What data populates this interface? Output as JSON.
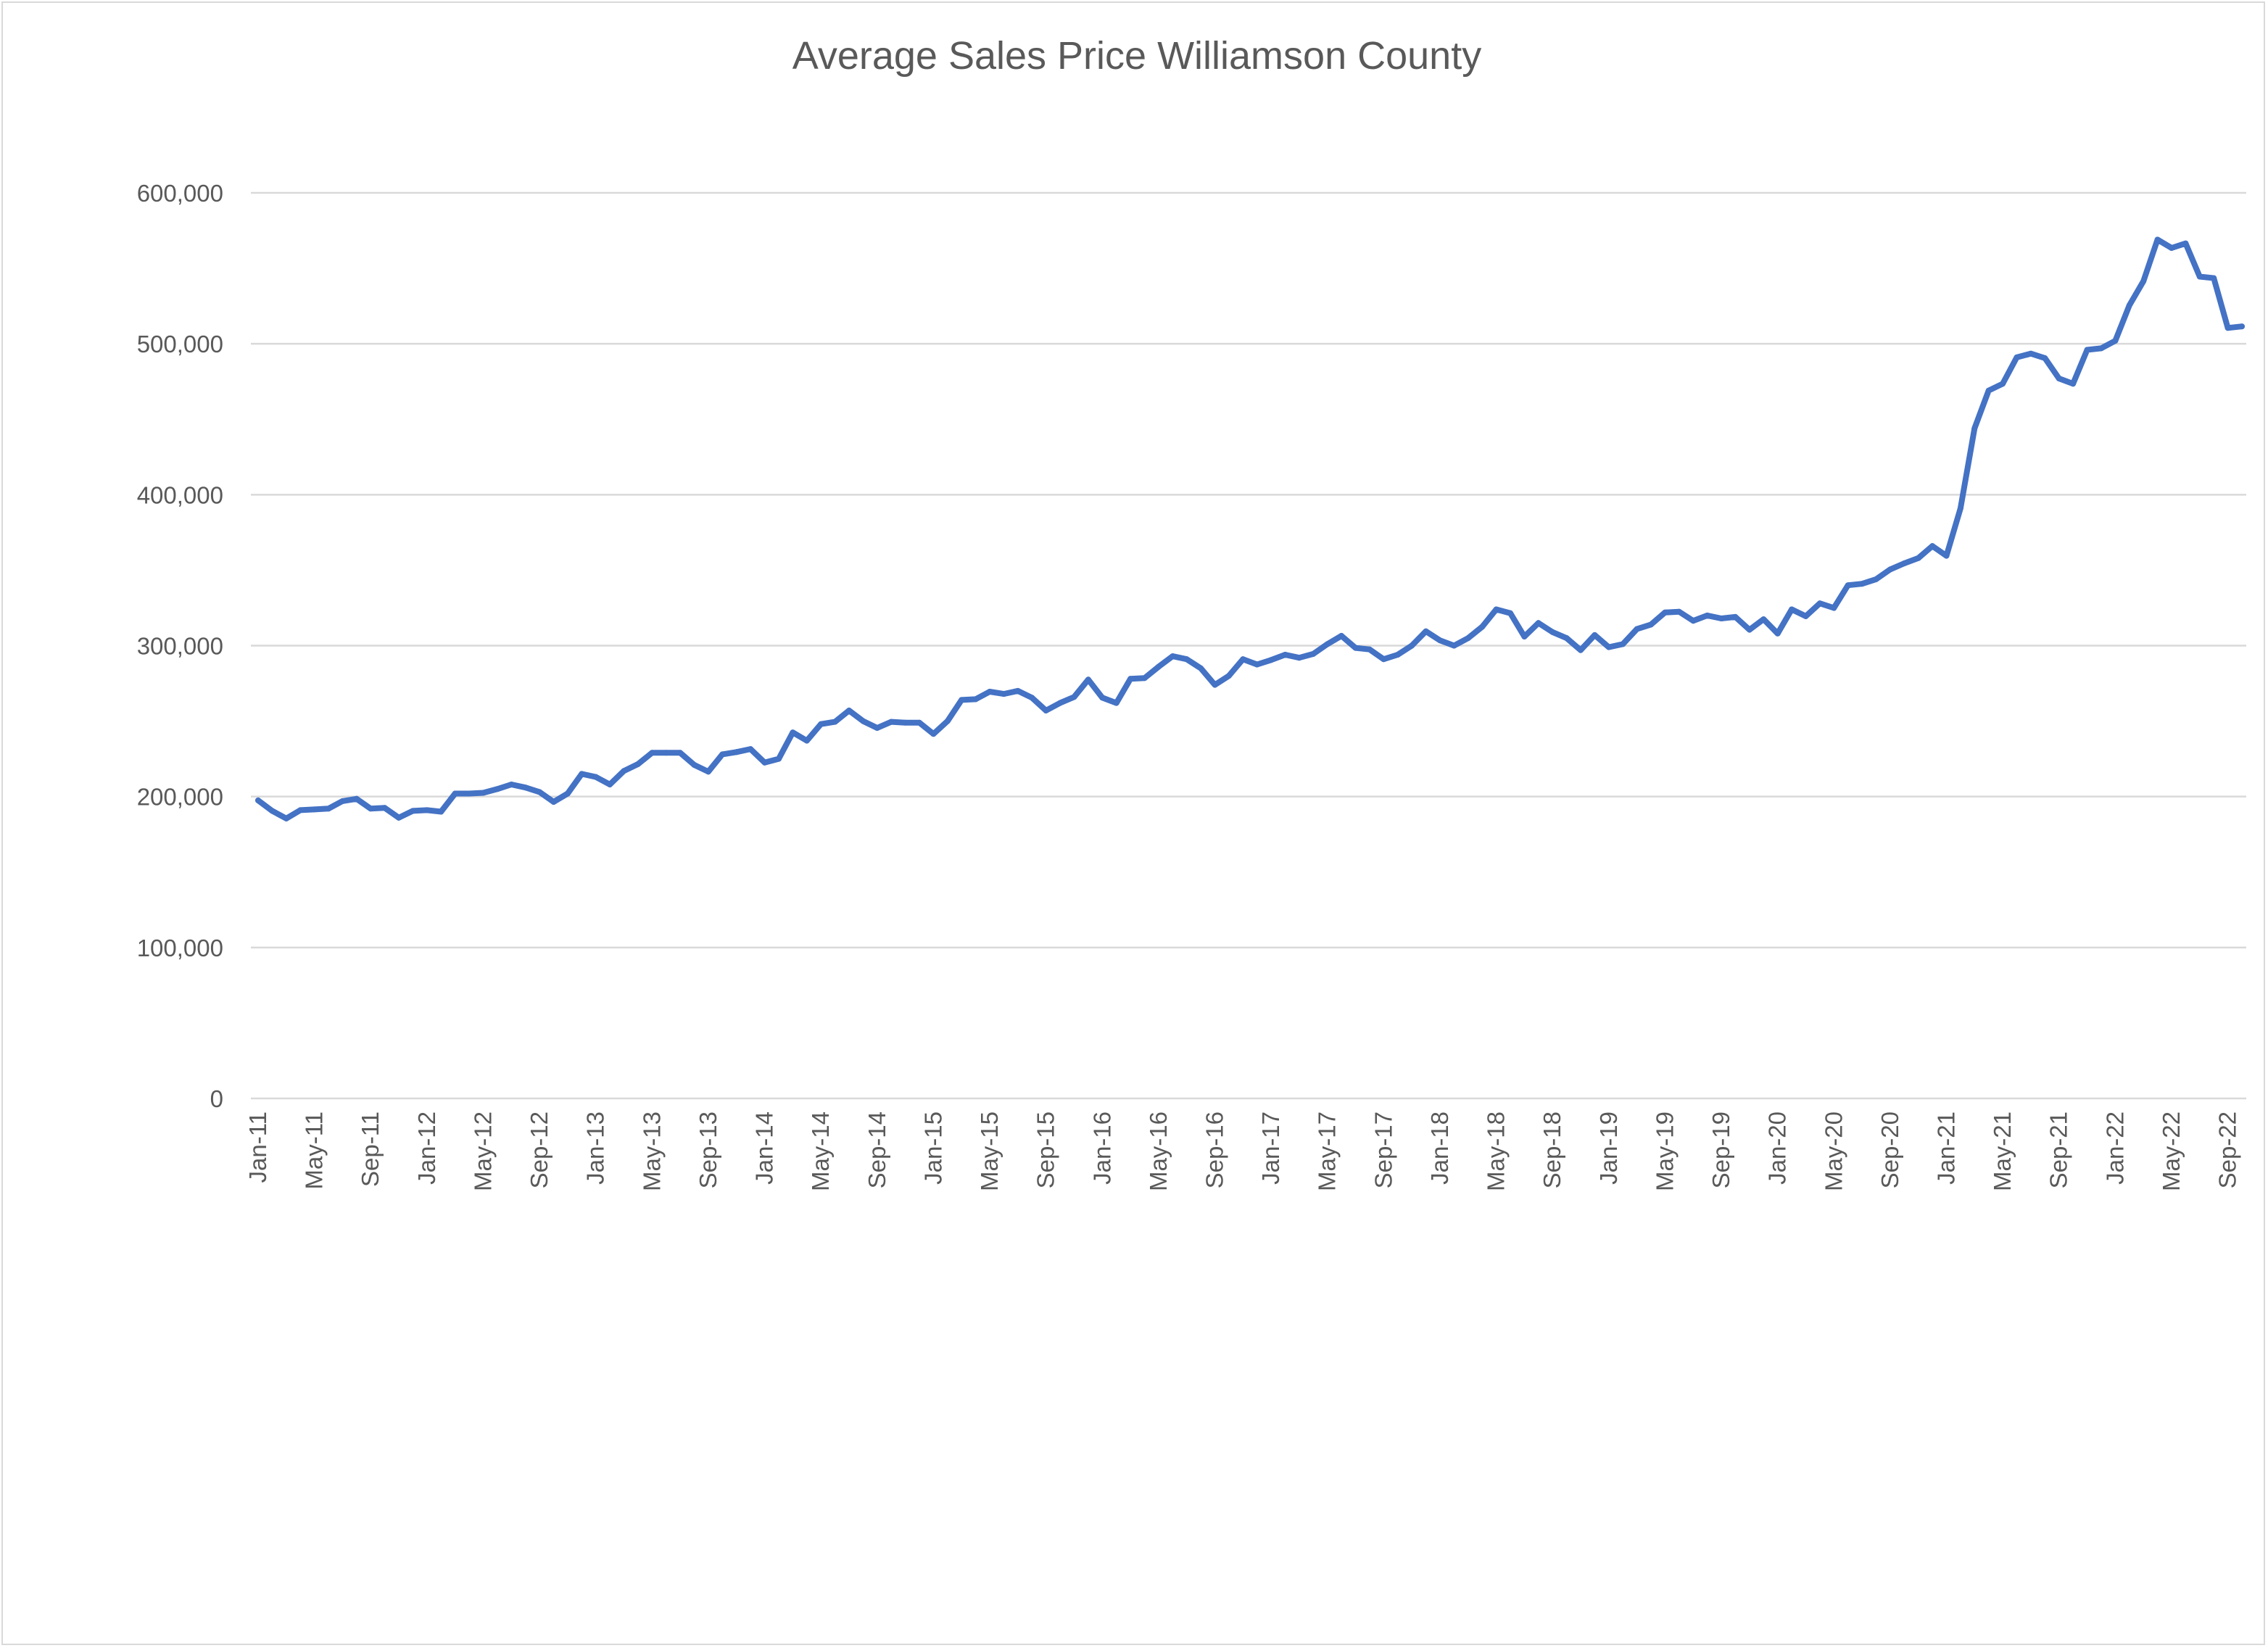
{
  "chart_data": {
    "type": "line",
    "title": "Average Sales Price Williamson County",
    "xlabel": "",
    "ylabel": "",
    "ylim": [
      0,
      600000
    ],
    "y_ticks": [
      0,
      100000,
      200000,
      300000,
      400000,
      500000,
      600000
    ],
    "y_tick_labels": [
      "0",
      "100,000",
      "200,000",
      "300,000",
      "400,000",
      "500,000",
      "600,000"
    ],
    "x_tick_labels": [
      "Jan-11",
      "May-11",
      "Sep-11",
      "Jan-12",
      "May-12",
      "Sep-12",
      "Jan-13",
      "May-13",
      "Sep-13",
      "Jan-14",
      "May-14",
      "Sep-14",
      "Jan-15",
      "May-15",
      "Sep-15",
      "Jan-16",
      "May-16",
      "Sep-16",
      "Jan-17",
      "May-17",
      "Sep-17",
      "Jan-18",
      "May-18",
      "Sep-18",
      "Jan-19",
      "May-19",
      "Sep-19",
      "Jan-20",
      "May-20",
      "Sep-20",
      "Jan-21",
      "May-21",
      "Sep-21",
      "Jan-22",
      "May-22",
      "Sep-22"
    ],
    "grid": true,
    "legend": "none",
    "x_start": "Jan-11",
    "x_end": "Oct-22",
    "series": [
      {
        "color": "#4472c4",
        "values": [
          197500,
          190500,
          185500,
          191000,
          191500,
          192000,
          197000,
          198500,
          192000,
          192500,
          186000,
          190500,
          191000,
          190000,
          202000,
          202000,
          202500,
          205000,
          208000,
          206000,
          203000,
          196500,
          202000,
          215000,
          213000,
          208000,
          217000,
          221500,
          229000,
          229000,
          229000,
          221000,
          216500,
          228000,
          229500,
          231500,
          222500,
          225000,
          242500,
          237000,
          248000,
          249500,
          257000,
          250000,
          245500,
          249500,
          249000,
          249000,
          241500,
          250000,
          264000,
          264500,
          269500,
          268000,
          270000,
          265500,
          257000,
          262000,
          266000,
          277500,
          265500,
          262000,
          278000,
          278500,
          286000,
          293000,
          291000,
          285000,
          274000,
          280000,
          291000,
          287500,
          290500,
          294000,
          292000,
          294500,
          301000,
          306500,
          298500,
          297500,
          291000,
          294000,
          300000,
          309500,
          303500,
          300000,
          305000,
          312500,
          324000,
          321500,
          306000,
          315000,
          309000,
          305000,
          297000,
          307000,
          299000,
          301000,
          311000,
          314000,
          322000,
          322500,
          316500,
          320000,
          318000,
          319000,
          310500,
          317500,
          308000,
          324000,
          319500,
          328000,
          325000,
          340000,
          341000,
          344000,
          350500,
          354500,
          358000,
          366000,
          359500,
          391000,
          444000,
          469000,
          473500,
          491000,
          493500,
          490500,
          477000,
          473500,
          496000,
          497000,
          502000,
          525500,
          541500,
          569000,
          563500,
          566500,
          544500,
          543500,
          510500,
          511500
        ]
      }
    ]
  }
}
